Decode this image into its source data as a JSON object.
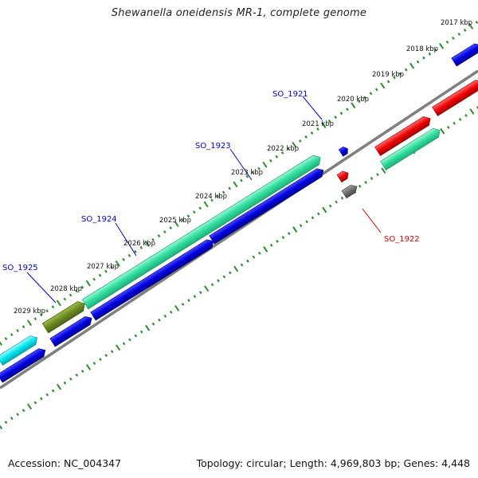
{
  "title": "Shewanella oneidensis MR-1, complete genome",
  "footer": {
    "accession": "Accession: NC_004347",
    "summary": "Topology: circular; Length: 4,969,803 bp; Genes: 4,448"
  },
  "colors": {
    "backbone": "#7f7f7f",
    "ticks": "#2e8b2e",
    "label_blue": "#0000cc",
    "label_red": "#dd0000",
    "gene_blue": "#0000dd",
    "gene_teal": "#33e0a0",
    "gene_red": "#ee0000",
    "gene_cyan": "#00e5f0",
    "gene_olive": "#6b8a22",
    "gene_gray": "#707070"
  },
  "kbp_labels": [
    "2017 kbp",
    "2018 kbp",
    "2019 kbp",
    "2020 kbp",
    "2021 kbp",
    "2022 kbp",
    "2023 kbp",
    "2024 kbp",
    "2025 kbp",
    "2026 kbp",
    "2027 kbp",
    "2028 kbp",
    "2029 kbp"
  ],
  "gene_labels": [
    {
      "text": "SO_1921",
      "color": "blue"
    },
    {
      "text": "SO_1922",
      "color": "red"
    },
    {
      "text": "SO_1923",
      "color": "blue"
    },
    {
      "text": "SO_1924",
      "color": "blue"
    },
    {
      "text": "SO_1925",
      "color": "blue"
    }
  ],
  "genes": [
    {
      "name": "red-gene-top-1",
      "color": "red"
    },
    {
      "name": "red-gene-top-2",
      "color": "red"
    },
    {
      "name": "red-gene-small",
      "color": "red"
    },
    {
      "name": "teal-gene-right",
      "color": "teal"
    },
    {
      "name": "gray-gene",
      "color": "gray"
    },
    {
      "name": "blue-gene-small",
      "color": "blue"
    },
    {
      "name": "blue-gene-top",
      "color": "blue"
    },
    {
      "name": "teal-gene-long",
      "color": "teal"
    },
    {
      "name": "olive-gene",
      "color": "olive"
    },
    {
      "name": "blue-gene-mid-1",
      "color": "blue"
    },
    {
      "name": "blue-gene-mid-2",
      "color": "blue"
    },
    {
      "name": "blue-gene-lower",
      "color": "blue"
    },
    {
      "name": "cyan-gene",
      "color": "cyan"
    },
    {
      "name": "blue-gene-bottom",
      "color": "blue"
    }
  ]
}
